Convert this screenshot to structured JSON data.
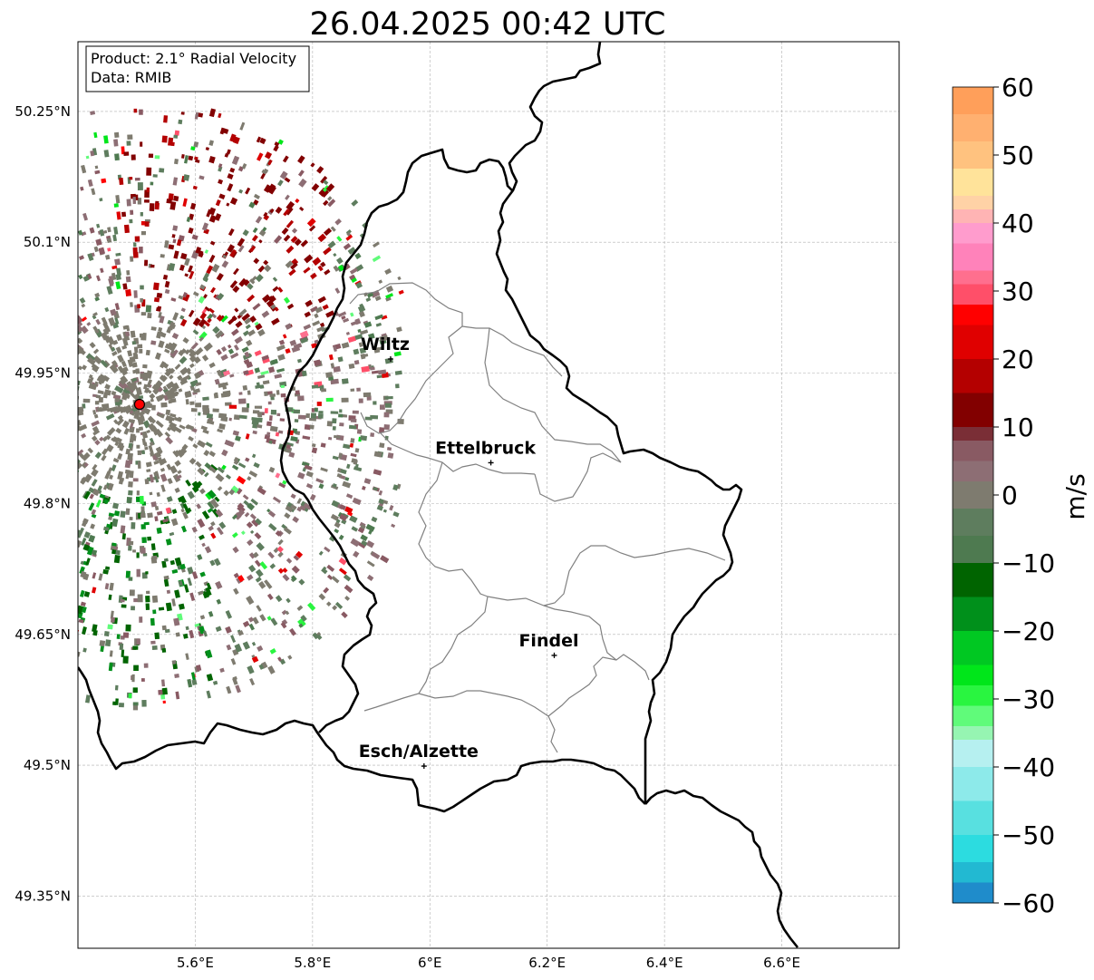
{
  "title": "26.04.2025 00:42 UTC",
  "info_box": {
    "product": "Product: 2.1° Radial Velocity",
    "data": "Data: RMIB"
  },
  "map": {
    "lon_range": [
      5.4,
      6.8
    ],
    "lat_range": [
      49.29,
      50.33
    ],
    "lon_ticks": [
      {
        "value": 5.6,
        "label": "5.6°E"
      },
      {
        "value": 5.8,
        "label": "5.8°E"
      },
      {
        "value": 6.0,
        "label": "6°E"
      },
      {
        "value": 6.2,
        "label": "6.2°E"
      },
      {
        "value": 6.4,
        "label": "6.4°E"
      },
      {
        "value": 6.6,
        "label": "6.6°E"
      }
    ],
    "lat_ticks": [
      {
        "value": 49.35,
        "label": "49.35°N"
      },
      {
        "value": 49.5,
        "label": "49.5°N"
      },
      {
        "value": 49.65,
        "label": "49.65°N"
      },
      {
        "value": 49.8,
        "label": "49.8°N"
      },
      {
        "value": 49.95,
        "label": "49.95°N"
      },
      {
        "value": 50.1,
        "label": "50.1°N"
      },
      {
        "value": 50.25,
        "label": "50.25°N"
      }
    ],
    "grid": true,
    "radar_site": {
      "lon": 5.505,
      "lat": 49.914
    },
    "cities": [
      {
        "name": "Wiltz",
        "lon": 5.933,
        "lat": 49.966
      },
      {
        "name": "Ettelbruck",
        "lon": 6.104,
        "lat": 49.847
      },
      {
        "name": "Findel",
        "lon": 6.212,
        "lat": 49.626
      },
      {
        "name": "Esch/Alzette",
        "lon": 5.99,
        "lat": 49.499
      }
    ]
  },
  "colorbar": {
    "label": "m/s",
    "min": -60,
    "max": 60,
    "ticks": [
      {
        "value": 60,
        "label": "60"
      },
      {
        "value": 50,
        "label": "50"
      },
      {
        "value": 40,
        "label": "40"
      },
      {
        "value": 30,
        "label": "30"
      },
      {
        "value": 20,
        "label": "20"
      },
      {
        "value": 10,
        "label": "10"
      },
      {
        "value": 0,
        "label": "0"
      },
      {
        "value": -10,
        "label": "−10"
      },
      {
        "value": -20,
        "label": "−20"
      },
      {
        "value": -30,
        "label": "−30"
      },
      {
        "value": -40,
        "label": "−40"
      },
      {
        "value": -50,
        "label": "−50"
      },
      {
        "value": -60,
        "label": "−60"
      }
    ],
    "bands": [
      {
        "from": 56,
        "to": 60,
        "color": "#ff9f5a"
      },
      {
        "from": 52,
        "to": 56,
        "color": "#ffb070"
      },
      {
        "from": 48,
        "to": 52,
        "color": "#ffc27f"
      },
      {
        "from": 44,
        "to": 48,
        "color": "#ffe39a"
      },
      {
        "from": 42,
        "to": 44,
        "color": "#ffd2a6"
      },
      {
        "from": 40,
        "to": 42,
        "color": "#ffb4b4"
      },
      {
        "from": 37,
        "to": 40,
        "color": "#ff9ccd"
      },
      {
        "from": 33,
        "to": 37,
        "color": "#ff82ba"
      },
      {
        "from": 31,
        "to": 33,
        "color": "#ff6f8e"
      },
      {
        "from": 28,
        "to": 31,
        "color": "#ff4f69"
      },
      {
        "from": 25,
        "to": 28,
        "color": "#ff0000"
      },
      {
        "from": 20,
        "to": 25,
        "color": "#e00000"
      },
      {
        "from": 15,
        "to": 20,
        "color": "#b40000"
      },
      {
        "from": 10,
        "to": 15,
        "color": "#820000"
      },
      {
        "from": 8,
        "to": 10,
        "color": "#7a2e36"
      },
      {
        "from": 5,
        "to": 8,
        "color": "#895a63"
      },
      {
        "from": 2,
        "to": 5,
        "color": "#8d6e74"
      },
      {
        "from": -2,
        "to": 2,
        "color": "#7e7b6f"
      },
      {
        "from": -6,
        "to": -2,
        "color": "#5e7d5e"
      },
      {
        "from": -10,
        "to": -6,
        "color": "#4e7a50"
      },
      {
        "from": -15,
        "to": -10,
        "color": "#006400"
      },
      {
        "from": -20,
        "to": -15,
        "color": "#00901b"
      },
      {
        "from": -25,
        "to": -20,
        "color": "#00c822"
      },
      {
        "from": -28,
        "to": -25,
        "color": "#00e61a"
      },
      {
        "from": -31,
        "to": -28,
        "color": "#29f540"
      },
      {
        "from": -34,
        "to": -31,
        "color": "#60fb7a"
      },
      {
        "from": -36,
        "to": -34,
        "color": "#96f5b2"
      },
      {
        "from": -40,
        "to": -36,
        "color": "#b6f0f0"
      },
      {
        "from": -45,
        "to": -40,
        "color": "#8deaea"
      },
      {
        "from": -50,
        "to": -45,
        "color": "#58e0e0"
      },
      {
        "from": -54,
        "to": -50,
        "color": "#2cdce0"
      },
      {
        "from": -57,
        "to": -54,
        "color": "#22b9d2"
      },
      {
        "from": -60,
        "to": -57,
        "color": "#1f8ccb"
      }
    ]
  }
}
